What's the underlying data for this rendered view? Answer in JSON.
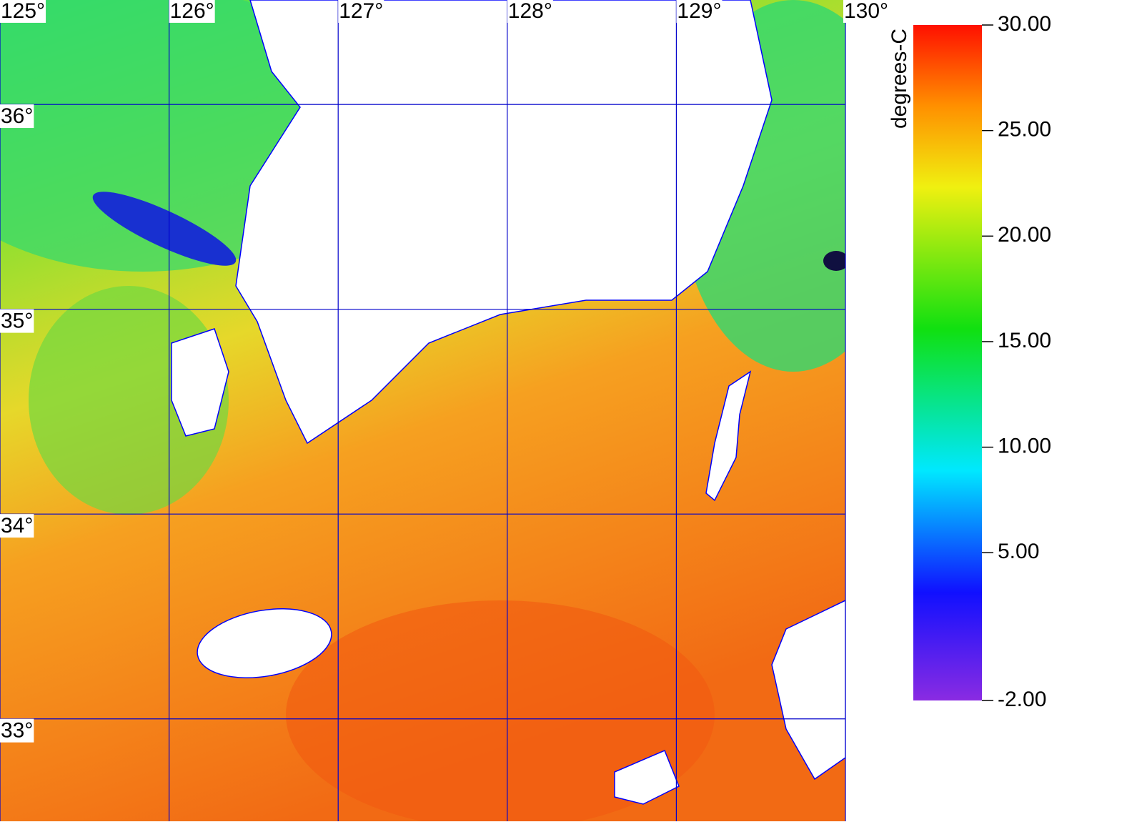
{
  "map": {
    "lonlim": [
      125,
      130
    ],
    "latlim": [
      32.5,
      36.51
    ],
    "lon_ticks": [
      {
        "value": 125,
        "label": "125°"
      },
      {
        "value": 126,
        "label": "126°"
      },
      {
        "value": 127,
        "label": "127°"
      },
      {
        "value": 128,
        "label": "128°"
      },
      {
        "value": 129,
        "label": "129°"
      },
      {
        "value": 130,
        "label": "130°"
      }
    ],
    "lat_ticks": [
      {
        "value": 36,
        "label": "36°"
      },
      {
        "value": 35,
        "label": "35°"
      },
      {
        "value": 34,
        "label": "34°"
      },
      {
        "value": 33,
        "label": "33°"
      }
    ],
    "grid_color": "#0000cc"
  },
  "colorbar": {
    "title": "degrees-C",
    "lim": [
      -2,
      30
    ],
    "ticks": [
      {
        "value": 30,
        "label": "30.00"
      },
      {
        "value": 25,
        "label": "25.00"
      },
      {
        "value": 20,
        "label": "20.00"
      },
      {
        "value": 15,
        "label": "15.00"
      },
      {
        "value": 10,
        "label": "10.00"
      },
      {
        "value": 5,
        "label": "5.00"
      },
      {
        "value": -2,
        "label": "-2.00"
      }
    ]
  }
}
